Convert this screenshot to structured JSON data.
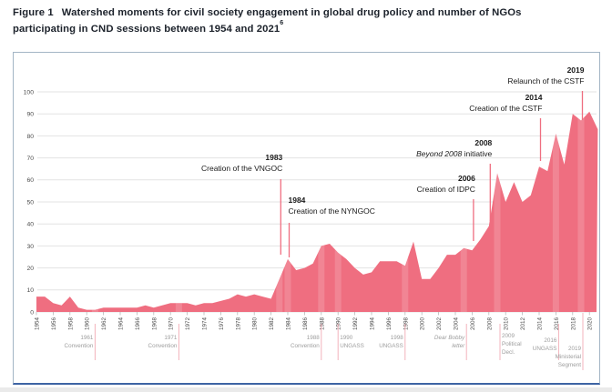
{
  "figure": {
    "label": "Figure 1",
    "title_line1": "Watershed moments for civil society engagement in global drug policy and number of NGOs",
    "title_line2": "participating in CND sessions between 1954 and 2021",
    "title_superscript": "6"
  },
  "chart_data": {
    "type": "area",
    "title": "Watershed moments for civil society engagement in global drug policy and number of NGOs participating in CND sessions between 1954 and 2021",
    "xlabel": "",
    "ylabel": "",
    "ylim": [
      0,
      100
    ],
    "yticks": [
      0,
      10,
      20,
      30,
      40,
      50,
      60,
      70,
      80,
      90,
      100
    ],
    "xtick_step": 2,
    "xtick_first": 1954,
    "xtick_last": 2020,
    "grid": "horizontal",
    "legend": "none",
    "x": [
      1954,
      1955,
      1956,
      1957,
      1958,
      1959,
      1960,
      1961,
      1962,
      1963,
      1964,
      1965,
      1966,
      1967,
      1968,
      1969,
      1970,
      1971,
      1972,
      1973,
      1974,
      1975,
      1976,
      1977,
      1978,
      1979,
      1980,
      1981,
      1982,
      1983,
      1984,
      1985,
      1986,
      1987,
      1988,
      1989,
      1990,
      1991,
      1992,
      1993,
      1994,
      1995,
      1996,
      1997,
      1998,
      1999,
      2000,
      2001,
      2002,
      2003,
      2004,
      2005,
      2006,
      2007,
      2008,
      2009,
      2010,
      2011,
      2012,
      2013,
      2014,
      2015,
      2016,
      2017,
      2018,
      2019,
      2020,
      2021
    ],
    "series": [
      {
        "name": "NGOs participating in CND sessions",
        "values": [
          7,
          7,
          4,
          3,
          7,
          2,
          1,
          1,
          2,
          2,
          2,
          2,
          2,
          3,
          2,
          3,
          4,
          4,
          4,
          3,
          4,
          4,
          5,
          6,
          8,
          7,
          8,
          7,
          6,
          15,
          24,
          19,
          20,
          22,
          30,
          31,
          27,
          24,
          20,
          17,
          18,
          23,
          23,
          23,
          21,
          32,
          15,
          15,
          20,
          26,
          26,
          29,
          28,
          33,
          39,
          63,
          50,
          59,
          50,
          53,
          66,
          64,
          81,
          67,
          90,
          87,
          91,
          83
        ]
      }
    ],
    "highlight_years": [
      1961,
      1971,
      1983,
      1984,
      1988,
      1990,
      1998,
      2005,
      2009,
      2016,
      2019
    ],
    "annotations": [
      {
        "year": "1983",
        "label": "Creation of the VNGOC",
        "anchor_year": 1983
      },
      {
        "year": "1984",
        "label": "Creation of the NYNGOC",
        "anchor_year": 1984
      },
      {
        "year": "2006",
        "label": "Creation of IDPC",
        "anchor_year": 2006
      },
      {
        "year": "2008",
        "label_italic": "Beyond 2008",
        "label": " initiative",
        "anchor_year": 2008
      },
      {
        "year": "2014",
        "label": "Creation of the CSTF",
        "anchor_year": 2014
      },
      {
        "year": "2019",
        "label": "Relaunch of the CSTF",
        "anchor_year": 2019
      }
    ],
    "milestones": [
      {
        "lines": [
          "1961",
          "Convention"
        ],
        "anchor_year": 1961
      },
      {
        "lines": [
          "1971",
          "Convention"
        ],
        "anchor_year": 1971
      },
      {
        "lines": [
          "1988",
          "Convention"
        ],
        "anchor_year": 1988
      },
      {
        "lines": [
          "1990",
          "UNGASS"
        ],
        "anchor_year": 1990
      },
      {
        "lines": [
          "1998",
          "UNGASS"
        ],
        "anchor_year": 1998
      },
      {
        "lines": [
          "Dear Bobby",
          "letter"
        ],
        "italic": true,
        "anchor_year": 2005
      },
      {
        "lines": [
          "2009",
          "Political",
          "Decl."
        ],
        "anchor_year": 2009
      },
      {
        "lines": [
          "2016",
          "UNGASS"
        ],
        "anchor_year": 2016
      },
      {
        "lines": [
          "2019",
          "Ministerial",
          "Segment"
        ],
        "anchor_year": 2019
      }
    ]
  },
  "colors": {
    "area": "#ef6e80",
    "annotation_line": "#ef6e80",
    "annotation_text": "#1a1a1a",
    "milestone_line": "#f3b3bc",
    "milestone_text": "#9d9d9d",
    "grid": "#e3e3e3",
    "axis_text": "#4a4a4a",
    "tick": "#b8b8b8",
    "highlight_band": "rgba(255,255,255,0.16)",
    "panel_border": "#a3b5c5",
    "panel_bottom_border": "#3e64a4",
    "title": "#1c222b"
  }
}
